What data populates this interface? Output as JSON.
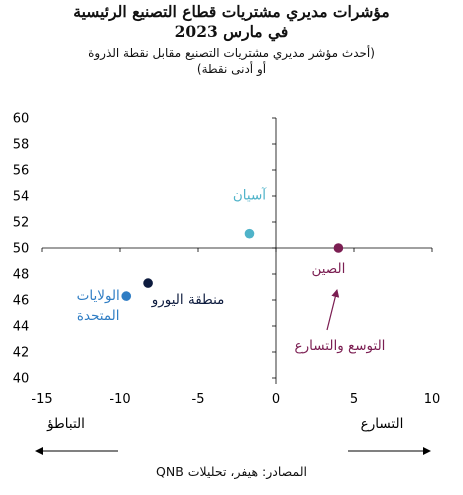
{
  "header": {
    "title_line1": "مؤشرات مديري مشتريات قطاع التصنيع الرئيسية",
    "title_line2": "في مارس 2023",
    "subtitle_line1": "(أحدث مؤشر مديري مشتريات التصنيع مقابل نقطة الذروة",
    "subtitle_line2": "أو أدنى نقطة)"
  },
  "source": "المصادر: هيفر، تحليلات QNB",
  "colors": {
    "axis": "#000000",
    "asia": "#4fb3c9",
    "china": "#7b1e52",
    "euro": "#0d1b3e",
    "us": "#2f7dc4"
  },
  "chart_data": {
    "type": "scatter",
    "xlim": [
      -15,
      10
    ],
    "ylim": [
      40,
      60
    ],
    "x_axis_crosses_y": 50,
    "grid": false,
    "x_ticks": [
      -15,
      -10,
      -5,
      0,
      5,
      10
    ],
    "x_tick_labels": [
      "-15",
      "-10",
      "-5",
      "0",
      "5",
      "10"
    ],
    "y_ticks": [
      40,
      42,
      44,
      46,
      48,
      50,
      52,
      54,
      56,
      58,
      60
    ],
    "y_tick_labels": [
      "40",
      "42",
      "44",
      "46",
      "48",
      "50",
      "52",
      "54",
      "56",
      "58",
      "60"
    ],
    "points": [
      {
        "key": "asia",
        "label": "آسيان",
        "x": -1.7,
        "y": 51.1,
        "color": "asia",
        "label_lines": [
          "آسيان"
        ]
      },
      {
        "key": "china",
        "label": "الصين",
        "x": 4.0,
        "y": 50.0,
        "color": "china",
        "label_lines": [
          "الصين"
        ]
      },
      {
        "key": "euro",
        "label": "منطقة اليورو",
        "x": -8.2,
        "y": 47.3,
        "color": "euro",
        "label_lines": [
          "منطقة اليورو"
        ]
      },
      {
        "key": "us",
        "label": "الولايات المتحدة",
        "x": -9.6,
        "y": 46.3,
        "color": "us",
        "label_lines": [
          "الولايات",
          "المتحدة"
        ]
      }
    ],
    "annotation": {
      "text": "التوسع والتسارع",
      "color": "china"
    },
    "left_arrow_label": "التباطؤ",
    "right_arrow_label": "التسارع"
  }
}
